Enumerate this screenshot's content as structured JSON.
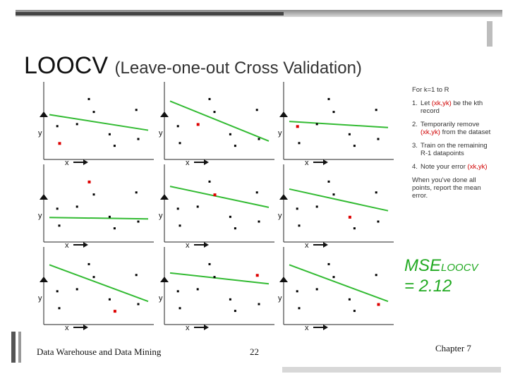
{
  "title": {
    "main": "LOOCV",
    "sub": "(Leave-one-out Cross Validation)"
  },
  "steps": {
    "intro": "For k=1 to R",
    "items": [
      {
        "num": "1.",
        "text_a": "Let ",
        "var": "(xk,yk)",
        "text_b": " be the kth record"
      },
      {
        "num": "2.",
        "text_a": "Temporarily remove ",
        "var": "(xk,yk)",
        "text_b": " from the dataset"
      },
      {
        "num": "3.",
        "text_a": "Train on the remaining R-1 datapoints",
        "var": "",
        "text_b": ""
      },
      {
        "num": "4.",
        "text_a": "Note your error ",
        "var": "(xk,yk)",
        "text_b": ""
      }
    ],
    "summary": "When you've done all points, report the mean error."
  },
  "mse": {
    "label": "MSE",
    "sub": "LOOCV",
    "value": "= 2.12"
  },
  "footer": {
    "left": "Data Warehouse and Data Mining",
    "page": "22",
    "right": "Chapter 7"
  },
  "colors": {
    "fit_line": "#33bb33",
    "held_out": "#dd0000",
    "points": "#000000"
  },
  "chart_data": {
    "type": "scatter",
    "title": "LOOCV",
    "xlabel": "x",
    "ylabel": "y",
    "xlim": [
      0,
      10
    ],
    "ylim": [
      0,
      10
    ],
    "panels": [
      {
        "held_out": 1,
        "line": [
          [
            0,
            6.2
          ],
          [
            10,
            3.9
          ]
        ]
      },
      {
        "held_out": 2,
        "line": [
          [
            0,
            8.2
          ],
          [
            10,
            2.3
          ]
        ]
      },
      {
        "held_out": 0,
        "line": [
          [
            0,
            5.2
          ],
          [
            10,
            4.3
          ]
        ]
      },
      {
        "held_out": 3,
        "line": [
          [
            0,
            3.2
          ],
          [
            10,
            3.0
          ]
        ]
      },
      {
        "held_out": 4,
        "line": [
          [
            0,
            7.8
          ],
          [
            10,
            4.7
          ]
        ]
      },
      {
        "held_out": 5,
        "line": [
          [
            0,
            7.4
          ],
          [
            10,
            4.2
          ]
        ]
      },
      {
        "held_out": 6,
        "line": [
          [
            0,
            8.4
          ],
          [
            10,
            3.0
          ]
        ]
      },
      {
        "held_out": 7,
        "line": [
          [
            0,
            7.2
          ],
          [
            10,
            5.6
          ]
        ]
      },
      {
        "held_out": 8,
        "line": [
          [
            0,
            8.4
          ],
          [
            10,
            3.0
          ]
        ]
      }
    ],
    "points": [
      {
        "x": 0.8,
        "y": 4.5
      },
      {
        "x": 1.0,
        "y": 2.0
      },
      {
        "x": 2.8,
        "y": 4.8
      },
      {
        "x": 4.0,
        "y": 8.5
      },
      {
        "x": 4.5,
        "y": 6.6
      },
      {
        "x": 6.1,
        "y": 3.3
      },
      {
        "x": 6.6,
        "y": 1.6
      },
      {
        "x": 8.8,
        "y": 6.9
      },
      {
        "x": 9.0,
        "y": 2.6
      }
    ]
  }
}
